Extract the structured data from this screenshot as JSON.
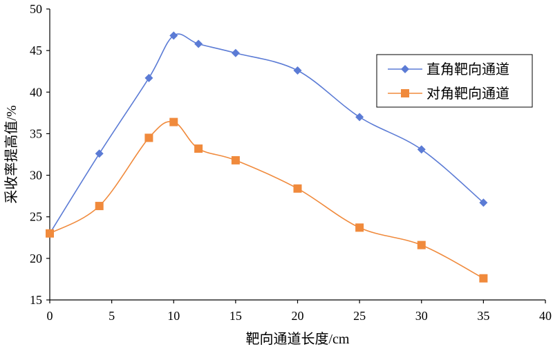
{
  "chart_data": {
    "type": "line",
    "xlabel": "靶向通道长度/cm",
    "ylabel": "采收率提高值/%",
    "xlim": [
      0,
      40
    ],
    "ylim": [
      15,
      50
    ],
    "xticks": [
      0,
      5,
      10,
      15,
      20,
      25,
      30,
      35,
      40
    ],
    "yticks": [
      15,
      20,
      25,
      30,
      35,
      40,
      45,
      50
    ],
    "grid": false,
    "legend_position": "top-right",
    "x": [
      0,
      4,
      8,
      10,
      12,
      15,
      20,
      25,
      30,
      35
    ],
    "series": [
      {
        "name": "直角靶向通道",
        "color": "#5B7BD5",
        "marker": "diamond",
        "values": [
          23.0,
          32.6,
          41.7,
          46.8,
          45.8,
          44.7,
          42.6,
          37.0,
          33.1,
          26.7
        ]
      },
      {
        "name": "对角靶向通道",
        "color": "#F08A3C",
        "marker": "square",
        "values": [
          23.0,
          26.3,
          34.5,
          36.4,
          33.2,
          31.8,
          28.4,
          23.7,
          21.6,
          17.6
        ]
      }
    ]
  }
}
